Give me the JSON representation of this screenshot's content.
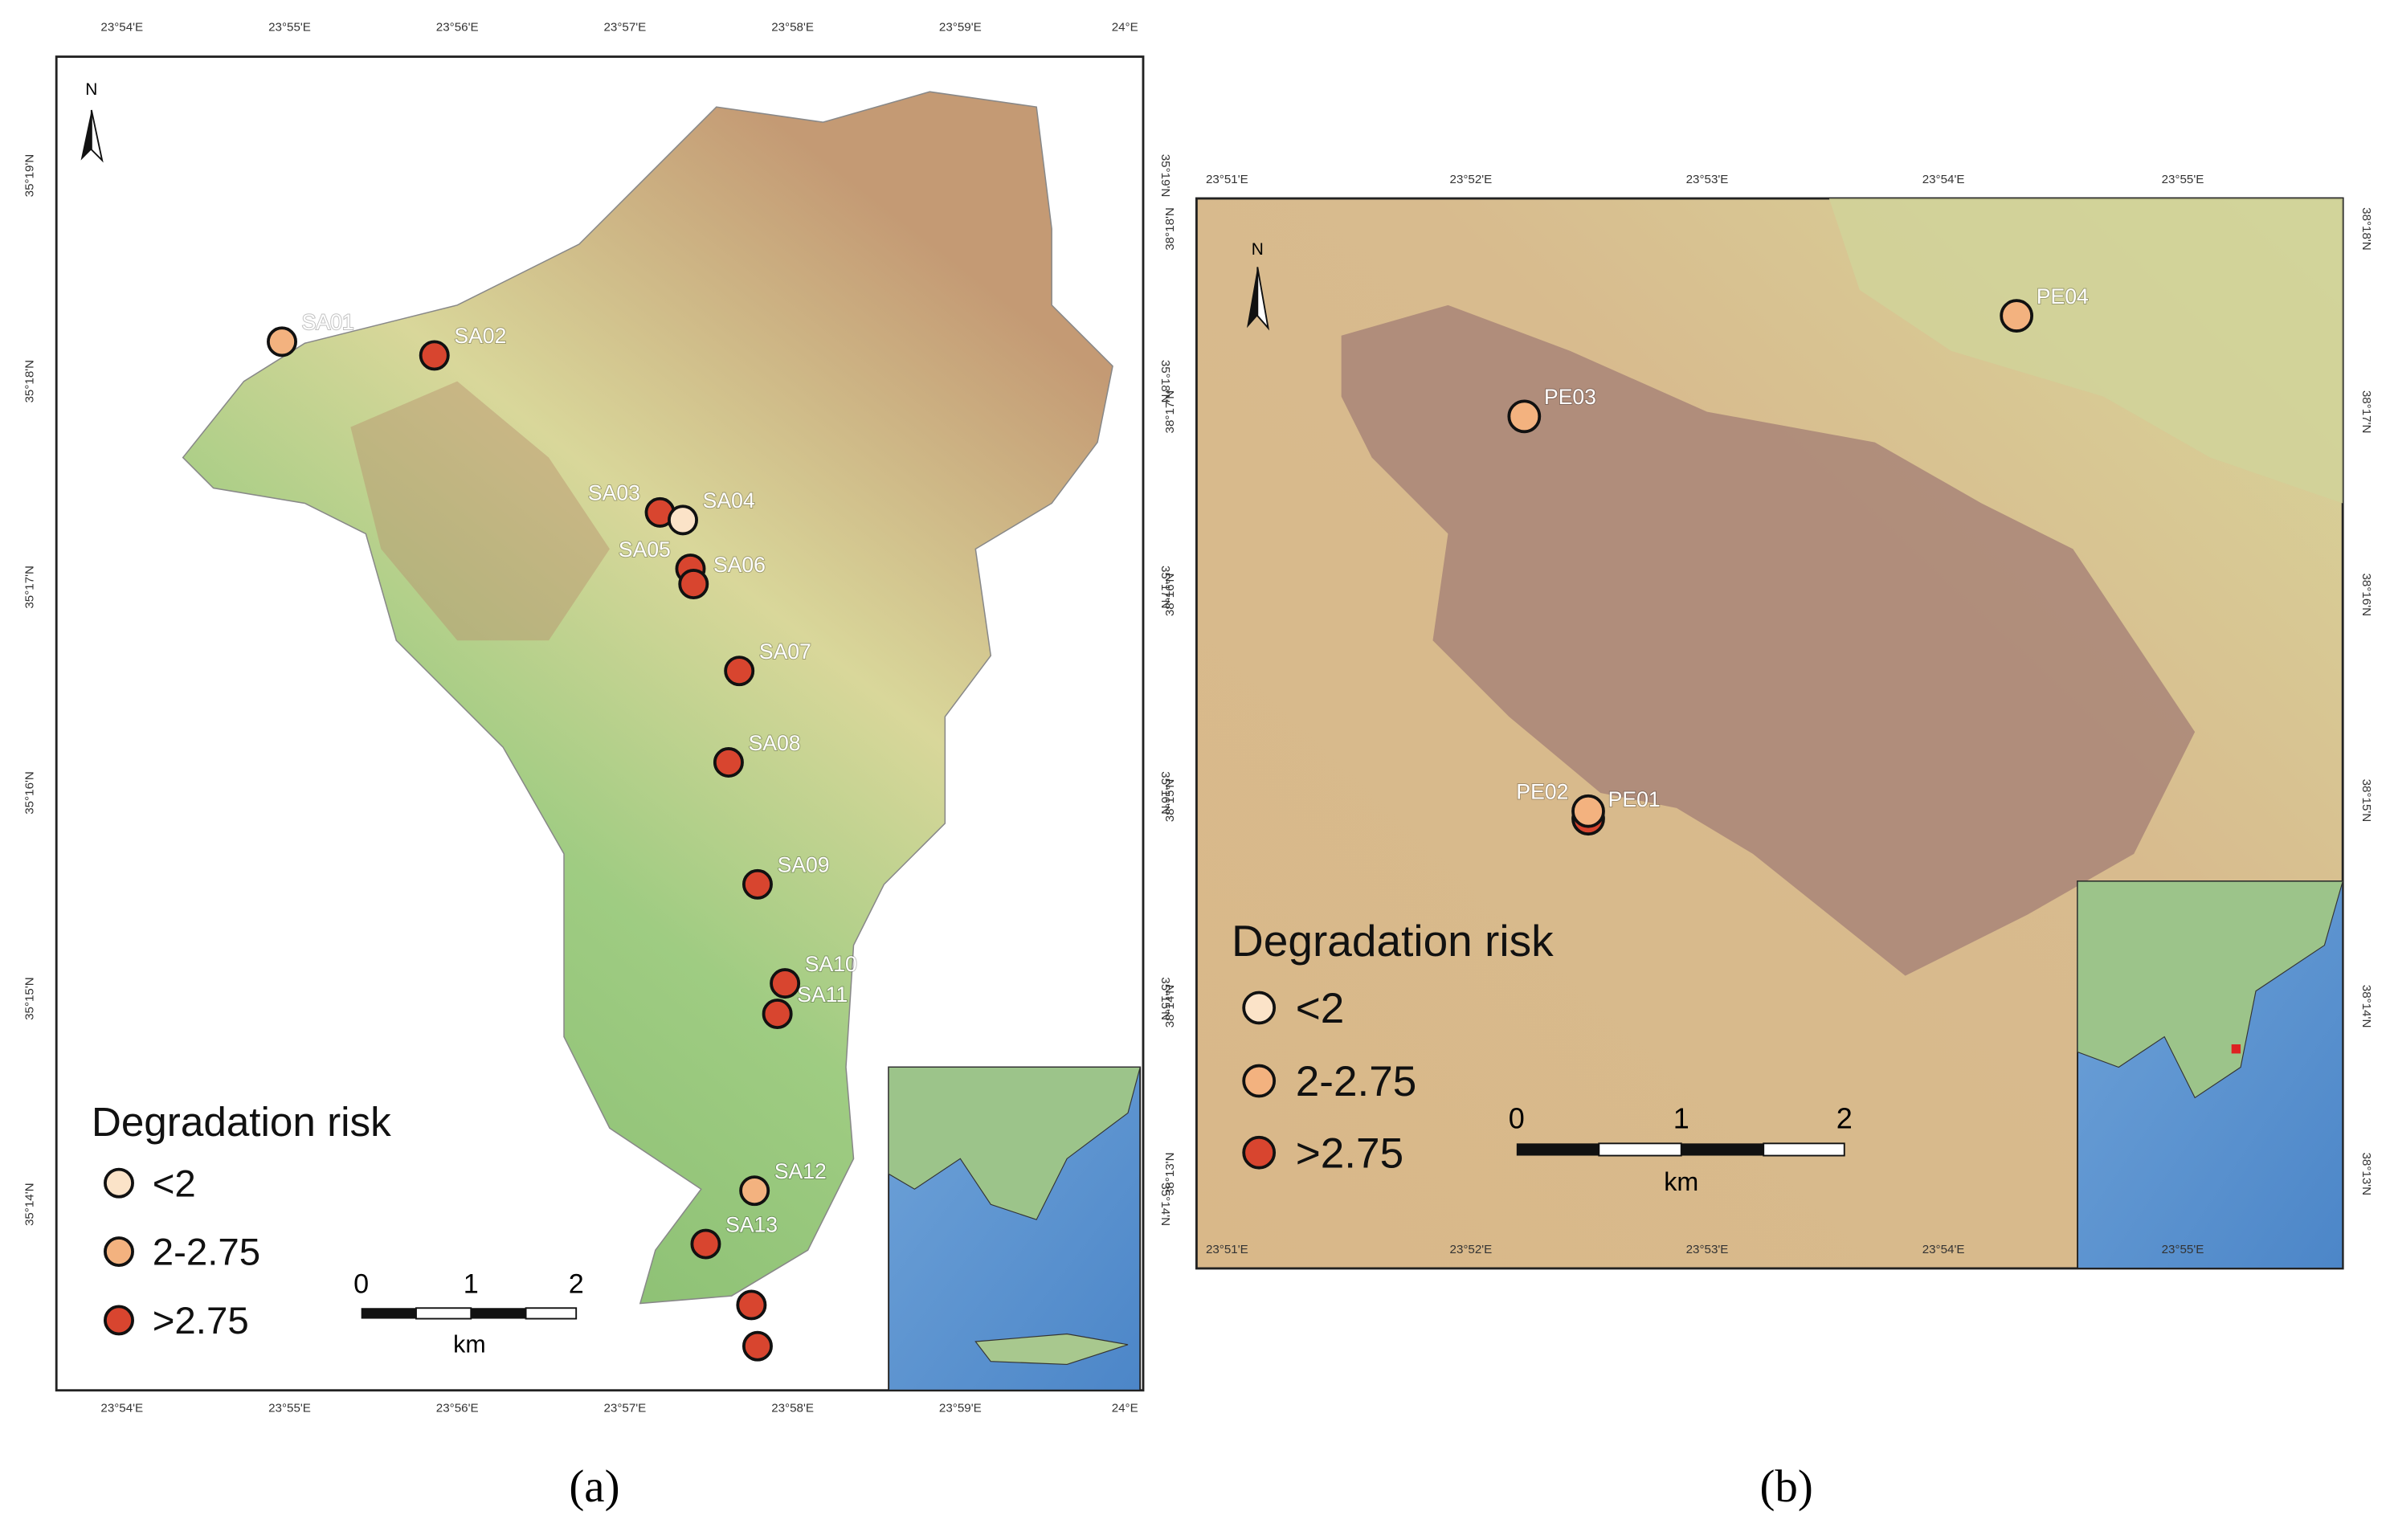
{
  "panels": [
    {
      "caption": "(a)",
      "north": "N",
      "legend": {
        "title": "Degradation risk",
        "items": [
          {
            "label": "<2",
            "color": "#fbe3c8"
          },
          {
            "label": "2-2.75",
            "color": "#f3b27f"
          },
          {
            "label": ">2.75",
            "color": "#d8452f"
          }
        ]
      },
      "scale": {
        "ticks": [
          "0",
          "1",
          "2"
        ],
        "unit": "km"
      },
      "top_labels": [
        "23°54'E",
        "23°55'E",
        "23°56'E",
        "23°57'E",
        "23°58'E",
        "23°59'E",
        "24°E"
      ],
      "left_labels": [
        "35°19'N",
        "35°18'N",
        "35°17'N",
        "35°16'N",
        "35°15'N",
        "35°14'N"
      ],
      "sites": [
        {
          "label": "SA01",
          "color": "#f3b27f"
        },
        {
          "label": "SA02",
          "color": "#d8452f"
        },
        {
          "label": "SA03",
          "color": "#d8452f"
        },
        {
          "label": "SA04",
          "color": "#fbe3c8"
        },
        {
          "label": "SA05",
          "color": "#d8452f"
        },
        {
          "label": "SA06",
          "color": "#d8452f"
        },
        {
          "label": "SA07",
          "color": "#d8452f"
        },
        {
          "label": "SA08",
          "color": "#d8452f"
        },
        {
          "label": "SA09",
          "color": "#d8452f"
        },
        {
          "label": "SA10",
          "color": "#d8452f"
        },
        {
          "label": "SA11",
          "color": "#d8452f"
        },
        {
          "label": "SA12",
          "color": "#f3b27f"
        },
        {
          "label": "SA13",
          "color": "#d8452f"
        },
        {
          "label": null,
          "color": "#d8452f"
        },
        {
          "label": null,
          "color": "#d8452f"
        }
      ]
    },
    {
      "caption": "(b)",
      "north": "N",
      "legend": {
        "title": "Degradation risk",
        "items": [
          {
            "label": "<2",
            "color": "#fbe3c8"
          },
          {
            "label": "2-2.75",
            "color": "#f3b27f"
          },
          {
            "label": ">2.75",
            "color": "#d8452f"
          }
        ]
      },
      "scale": {
        "ticks": [
          "0",
          "1",
          "2"
        ],
        "unit": "km"
      },
      "top_labels": [
        "23°51'E",
        "23°52'E",
        "23°53'E",
        "23°54'E",
        "23°55'E"
      ],
      "left_labels": [
        "38°18'N",
        "38°17'N",
        "38°16'N",
        "38°15'N",
        "38°14'N",
        "38°13'N"
      ],
      "sites": [
        {
          "label": "PE01",
          "color": "#d8452f"
        },
        {
          "label": "PE02",
          "color": "#f3b27f"
        },
        {
          "label": "PE03",
          "color": "#f3b27f"
        },
        {
          "label": "PE04",
          "color": "#f3b27f"
        }
      ]
    }
  ]
}
